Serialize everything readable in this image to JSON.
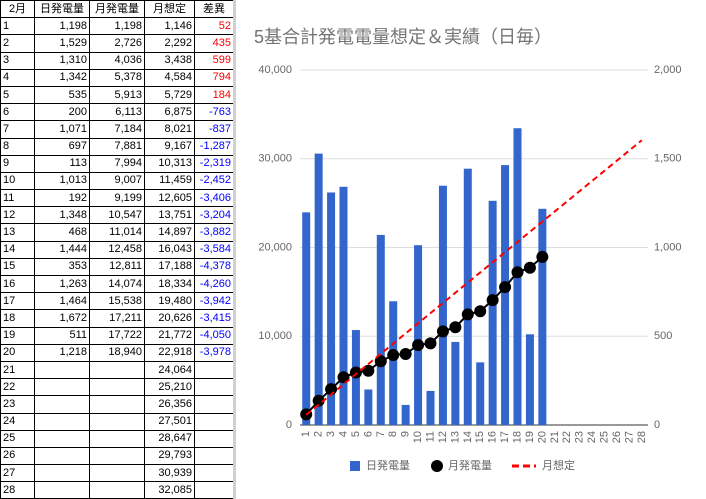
{
  "table": {
    "header": [
      "2月",
      "日発電量",
      "月発電量",
      "月想定",
      "差異"
    ],
    "rows": [
      [
        "1",
        "1,198",
        "1,198",
        "1,146",
        "52"
      ],
      [
        "2",
        "1,529",
        "2,726",
        "2,292",
        "435"
      ],
      [
        "3",
        "1,310",
        "4,036",
        "3,438",
        "599"
      ],
      [
        "4",
        "1,342",
        "5,378",
        "4,584",
        "794"
      ],
      [
        "5",
        "535",
        "5,913",
        "5,729",
        "184"
      ],
      [
        "6",
        "200",
        "6,113",
        "6,875",
        "-763"
      ],
      [
        "7",
        "1,071",
        "7,184",
        "8,021",
        "-837"
      ],
      [
        "8",
        "697",
        "7,881",
        "9,167",
        "-1,287"
      ],
      [
        "9",
        "113",
        "7,994",
        "10,313",
        "-2,319"
      ],
      [
        "10",
        "1,013",
        "9,007",
        "11,459",
        "-2,452"
      ],
      [
        "11",
        "192",
        "9,199",
        "12,605",
        "-3,406"
      ],
      [
        "12",
        "1,348",
        "10,547",
        "13,751",
        "-3,204"
      ],
      [
        "13",
        "468",
        "11,014",
        "14,897",
        "-3,882"
      ],
      [
        "14",
        "1,444",
        "12,458",
        "16,043",
        "-3,584"
      ],
      [
        "15",
        "353",
        "12,811",
        "17,188",
        "-4,378"
      ],
      [
        "16",
        "1,263",
        "14,074",
        "18,334",
        "-4,260"
      ],
      [
        "17",
        "1,464",
        "15,538",
        "19,480",
        "-3,942"
      ],
      [
        "18",
        "1,672",
        "17,211",
        "20,626",
        "-3,415"
      ],
      [
        "19",
        "511",
        "17,722",
        "21,772",
        "-4,050"
      ],
      [
        "20",
        "1,218",
        "18,940",
        "22,918",
        "-3,978"
      ],
      [
        "21",
        null,
        null,
        "24,064",
        null
      ],
      [
        "22",
        null,
        null,
        "25,210",
        null
      ],
      [
        "23",
        null,
        null,
        "26,356",
        null
      ],
      [
        "24",
        null,
        null,
        "27,501",
        null
      ],
      [
        "25",
        null,
        null,
        "28,647",
        null
      ],
      [
        "26",
        null,
        null,
        "29,793",
        null
      ],
      [
        "27",
        null,
        null,
        "30,939",
        null
      ],
      [
        "28",
        null,
        null,
        "32,085",
        null
      ]
    ]
  },
  "chart_data": {
    "type": "combo",
    "title": "5基合計発電電量想定＆実績（日毎）",
    "categories": [
      "1",
      "2",
      "3",
      "4",
      "5",
      "6",
      "7",
      "8",
      "9",
      "10",
      "11",
      "12",
      "13",
      "14",
      "15",
      "16",
      "17",
      "18",
      "19",
      "20",
      "21",
      "22",
      "23",
      "24",
      "25",
      "26",
      "27",
      "28"
    ],
    "series": [
      {
        "name": "日発電量",
        "type": "bar",
        "axis": "y2",
        "color": "#3366cc",
        "values": [
          1198,
          1529,
          1310,
          1342,
          535,
          200,
          1071,
          697,
          113,
          1013,
          192,
          1348,
          468,
          1444,
          353,
          1263,
          1464,
          1672,
          511,
          1218,
          null,
          null,
          null,
          null,
          null,
          null,
          null,
          null
        ]
      },
      {
        "name": "月発電量",
        "type": "line",
        "color": "#000000",
        "markers": true,
        "values": [
          1198,
          2726,
          4036,
          5378,
          5913,
          6113,
          7184,
          7881,
          7994,
          9007,
          9199,
          10547,
          11014,
          12458,
          12811,
          14074,
          15538,
          17211,
          17722,
          18940,
          null,
          null,
          null,
          null,
          null,
          null,
          null,
          null
        ]
      },
      {
        "name": "月想定",
        "type": "line",
        "color": "#ff0000",
        "dashed": true,
        "values": [
          1146,
          2292,
          3438,
          4584,
          5729,
          6875,
          8021,
          9167,
          10313,
          11459,
          12605,
          13751,
          14897,
          16043,
          17188,
          18334,
          19480,
          20626,
          21772,
          22918,
          24064,
          25210,
          26356,
          27501,
          28647,
          29793,
          30939,
          32085
        ]
      }
    ],
    "ylim": [
      0,
      40000
    ],
    "yticks": [
      0,
      {
        "value": 10000,
        "label": "10,000"
      },
      {
        "value": 20000,
        "label": "20,000"
      },
      {
        "value": 30000,
        "label": "30,000"
      },
      {
        "value": 40000,
        "label": "40,000"
      }
    ],
    "y2lim": [
      0,
      2000
    ],
    "y2ticks": [
      0,
      500,
      {
        "value": 1000,
        "label": "1,000"
      },
      {
        "value": 1500,
        "label": "1,500"
      },
      {
        "value": 2000,
        "label": "2,000"
      }
    ],
    "grid": true,
    "legend": "bottom"
  }
}
